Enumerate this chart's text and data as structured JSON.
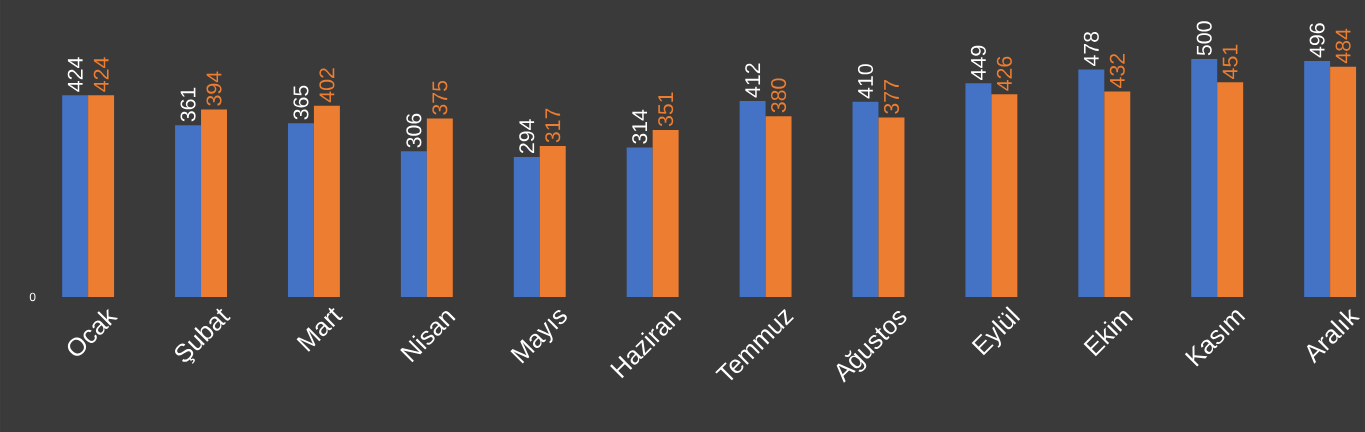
{
  "chart_data": {
    "type": "bar",
    "categories": [
      "Ocak",
      "Şubat",
      "Mart",
      "Nisan",
      "Mayıs",
      "Haziran",
      "Temmuz",
      "Ağustos",
      "Eylül",
      "Ekim",
      "Kasım",
      "Aralık"
    ],
    "series": [
      {
        "color": "#4472c4",
        "values": [
          424,
          361,
          365,
          306,
          294,
          314,
          412,
          410,
          449,
          478,
          500,
          496
        ]
      },
      {
        "color": "#ed7d31",
        "values": [
          424,
          394,
          402,
          375,
          317,
          351,
          380,
          377,
          426,
          432,
          451,
          484
        ]
      }
    ],
    "ylim": [
      0,
      624
    ],
    "data_labels": true,
    "annotations": [
      "0"
    ]
  }
}
